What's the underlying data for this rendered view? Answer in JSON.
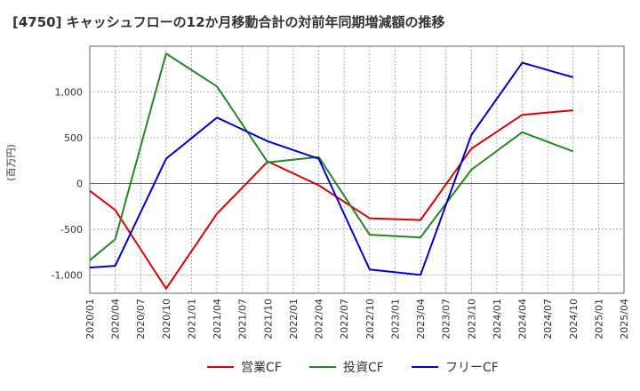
{
  "chart_data": {
    "type": "line",
    "title": "[4750]  キャッシュフローの12か月移動合計の対前年同期増減額の推移",
    "ylabel": "(百万円)",
    "xlabel": "",
    "ylim": [
      -1200,
      1500
    ],
    "y_ticks": [
      -1000,
      -500,
      0,
      500,
      1000
    ],
    "y_tick_labels": [
      "-1,000",
      "-500",
      "0",
      "500",
      "1,000"
    ],
    "categories": [
      "2020/01",
      "2020/04",
      "2020/07",
      "2020/10",
      "2021/01",
      "2021/04",
      "2021/07",
      "2021/10",
      "2022/01",
      "2022/04",
      "2022/07",
      "2022/10",
      "2023/01",
      "2023/04",
      "2023/07",
      "2023/10",
      "2024/01",
      "2024/04",
      "2024/07",
      "2024/10",
      "2025/01",
      "2025/04"
    ],
    "grid": true,
    "series": [
      {
        "name": "営業CF",
        "color": "#dd0000",
        "values": [
          -80,
          -290,
          null,
          -1150,
          null,
          -330,
          null,
          240,
          null,
          -20,
          null,
          -380,
          null,
          -400,
          null,
          380,
          null,
          750,
          null,
          800,
          null,
          null
        ]
      },
      {
        "name": "投資CF",
        "color": "#228822",
        "values": [
          -840,
          -610,
          null,
          1420,
          null,
          1060,
          null,
          230,
          null,
          290,
          null,
          -560,
          null,
          -590,
          null,
          150,
          null,
          560,
          null,
          350,
          null,
          null
        ]
      },
      {
        "name": "フリーCF",
        "color": "#0000cc",
        "values": [
          -920,
          -900,
          null,
          270,
          null,
          720,
          null,
          460,
          null,
          270,
          null,
          -940,
          null,
          -1000,
          null,
          530,
          null,
          1320,
          null,
          1160,
          null,
          null
        ]
      }
    ],
    "legend_position": "bottom-center"
  }
}
